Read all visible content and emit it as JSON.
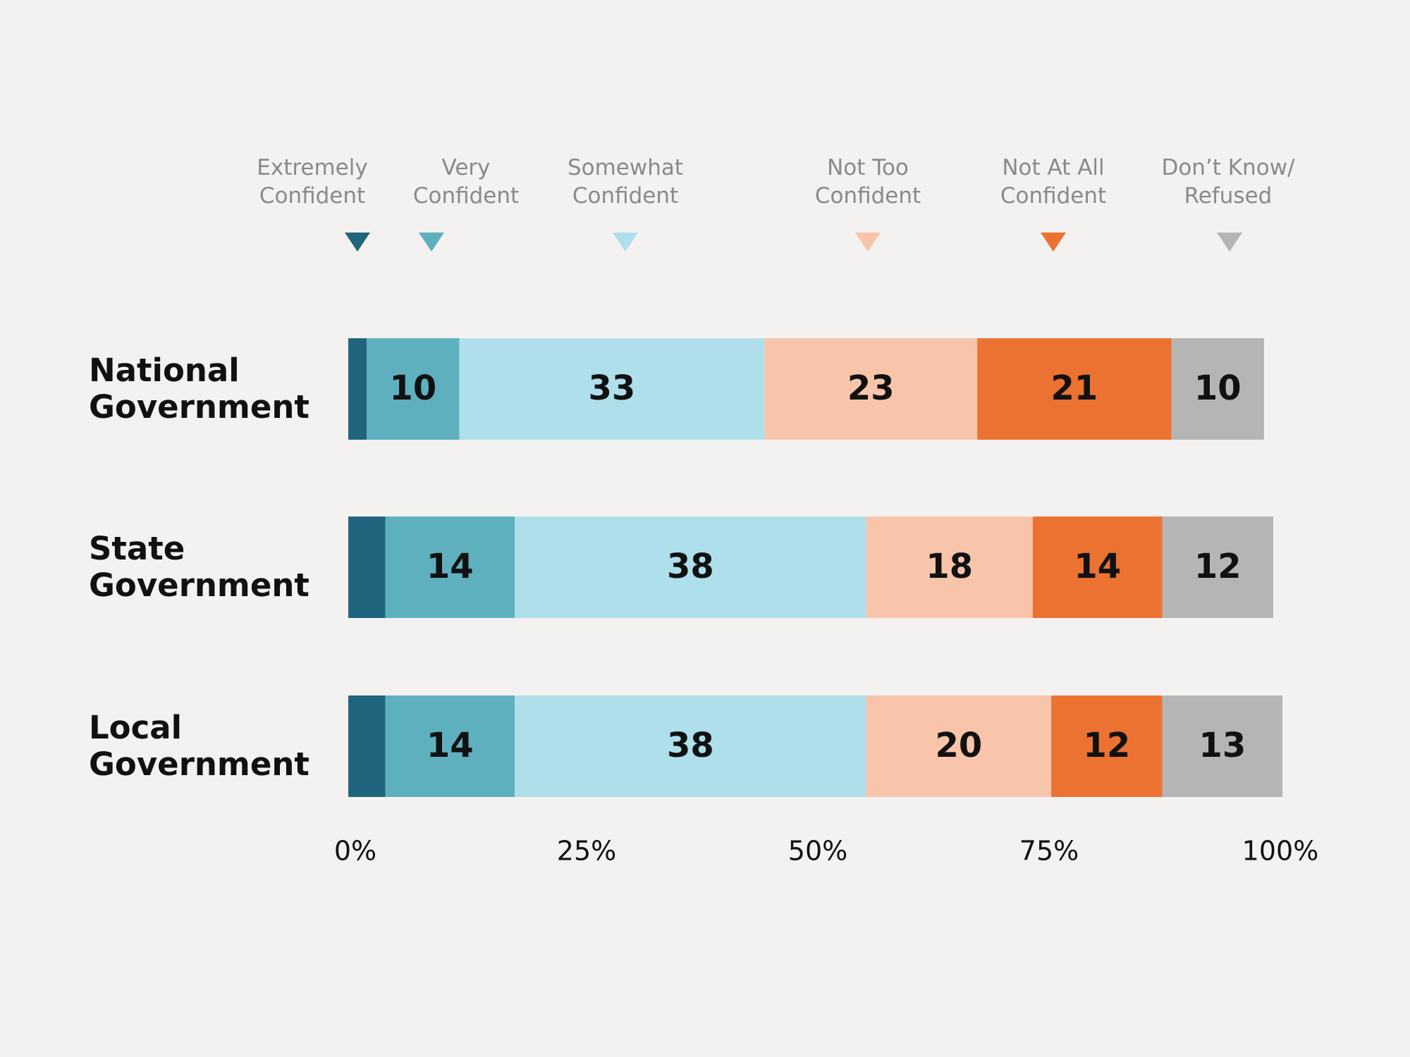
{
  "chart_data": {
    "type": "stacked-bar-horizontal",
    "categories": [
      "National Government",
      "State Government",
      "Local Government"
    ],
    "series": [
      {
        "name": "Extremely Confident",
        "color": "#1f657d",
        "values": [
          2,
          4,
          4
        ],
        "show_values": false
      },
      {
        "name": "Very Confident",
        "color": "#5fb0bf",
        "values": [
          10,
          14,
          14
        ]
      },
      {
        "name": "Somewhat Confident",
        "color": "#aedfeb",
        "values": [
          33,
          38,
          38
        ]
      },
      {
        "name": "Not Too Confident",
        "color": "#f8c5aa",
        "values": [
          23,
          18,
          20
        ]
      },
      {
        "name": "Not At All Confident",
        "color": "#ec7232",
        "values": [
          21,
          14,
          12
        ]
      },
      {
        "name": "Don’t Know/ Refused",
        "color": "#b5b5b5",
        "values": [
          10,
          12,
          13
        ]
      }
    ],
    "xlim": [
      0,
      100
    ],
    "xticks": [
      {
        "value": 0,
        "label": "0%"
      },
      {
        "value": 25,
        "label": "25%"
      },
      {
        "value": 50,
        "label": "50%"
      },
      {
        "value": 75,
        "label": "75%"
      },
      {
        "value": 100,
        "label": "100%"
      }
    ]
  }
}
